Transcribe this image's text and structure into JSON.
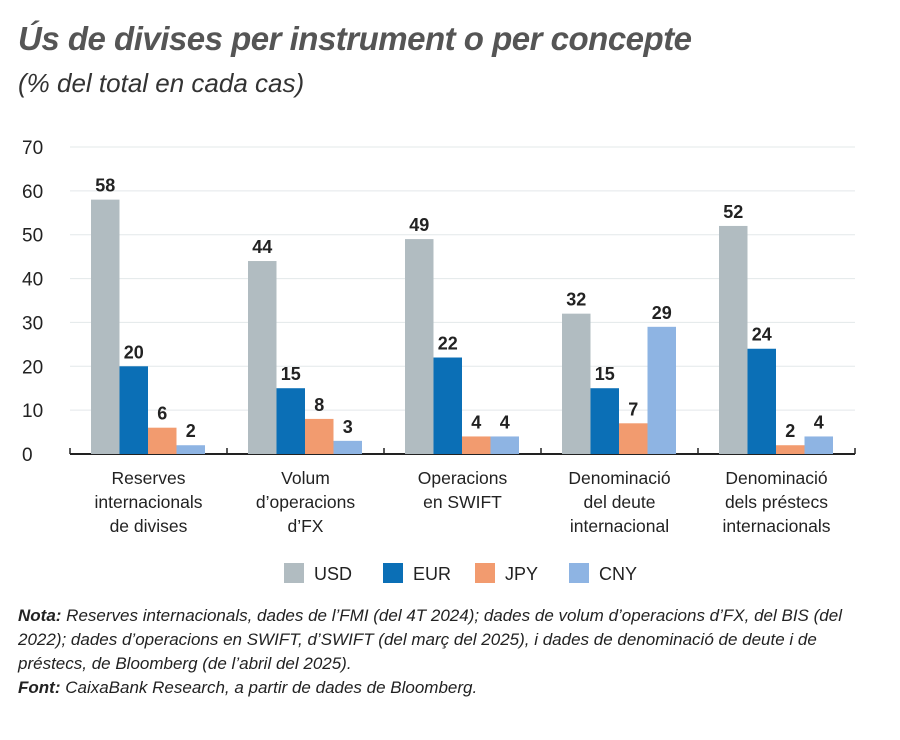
{
  "title": "Ús de divises per instrument o per concepte",
  "subtitle": "(% del total en cada cas)",
  "chart_data": {
    "type": "bar",
    "title": "Ús de divises per instrument o per concepte",
    "subtitle": "(% del total en cada cas)",
    "xlabel": "",
    "ylabel": "",
    "ylim": [
      0,
      70
    ],
    "yticks": [
      "0",
      "10",
      "20",
      "30",
      "40",
      "50",
      "60",
      "70"
    ],
    "grid": true,
    "legend_position": "bottom",
    "categories": [
      [
        "Reserves",
        "internacionals",
        "de divises"
      ],
      [
        "Volum",
        "d’operacions",
        "d’FX"
      ],
      [
        "Operacions",
        "en SWIFT"
      ],
      [
        "Denominació",
        "del deute",
        "internacional"
      ],
      [
        "Denominació",
        "dels préstecs",
        "internacionals"
      ]
    ],
    "series": [
      {
        "name": "USD",
        "color": "#b1bcc1",
        "values": [
          58,
          44,
          49,
          32,
          52
        ]
      },
      {
        "name": "EUR",
        "color": "#0b6fb6",
        "values": [
          20,
          15,
          22,
          15,
          24
        ]
      },
      {
        "name": "JPY",
        "color": "#f29b6f",
        "values": [
          6,
          8,
          4,
          7,
          2
        ]
      },
      {
        "name": "CNY",
        "color": "#8eb4e3",
        "values": [
          2,
          3,
          4,
          29,
          4
        ]
      }
    ]
  },
  "notes": {
    "nota_label": "Nota:",
    "nota_text": " Reserves internacionals, dades de l’FMI (del 4T 2024); dades de volum d’operacions d’FX, del BIS (del 2022); dades d’operacions en SWIFT, d’SWIFT (del març del 2025), i dades de denominació de deute i de préstecs, de Bloomberg (de l’abril del 2025).",
    "font_label": "Font:",
    "font_text": " CaixaBank Research, a partir de dades de Bloomberg."
  }
}
